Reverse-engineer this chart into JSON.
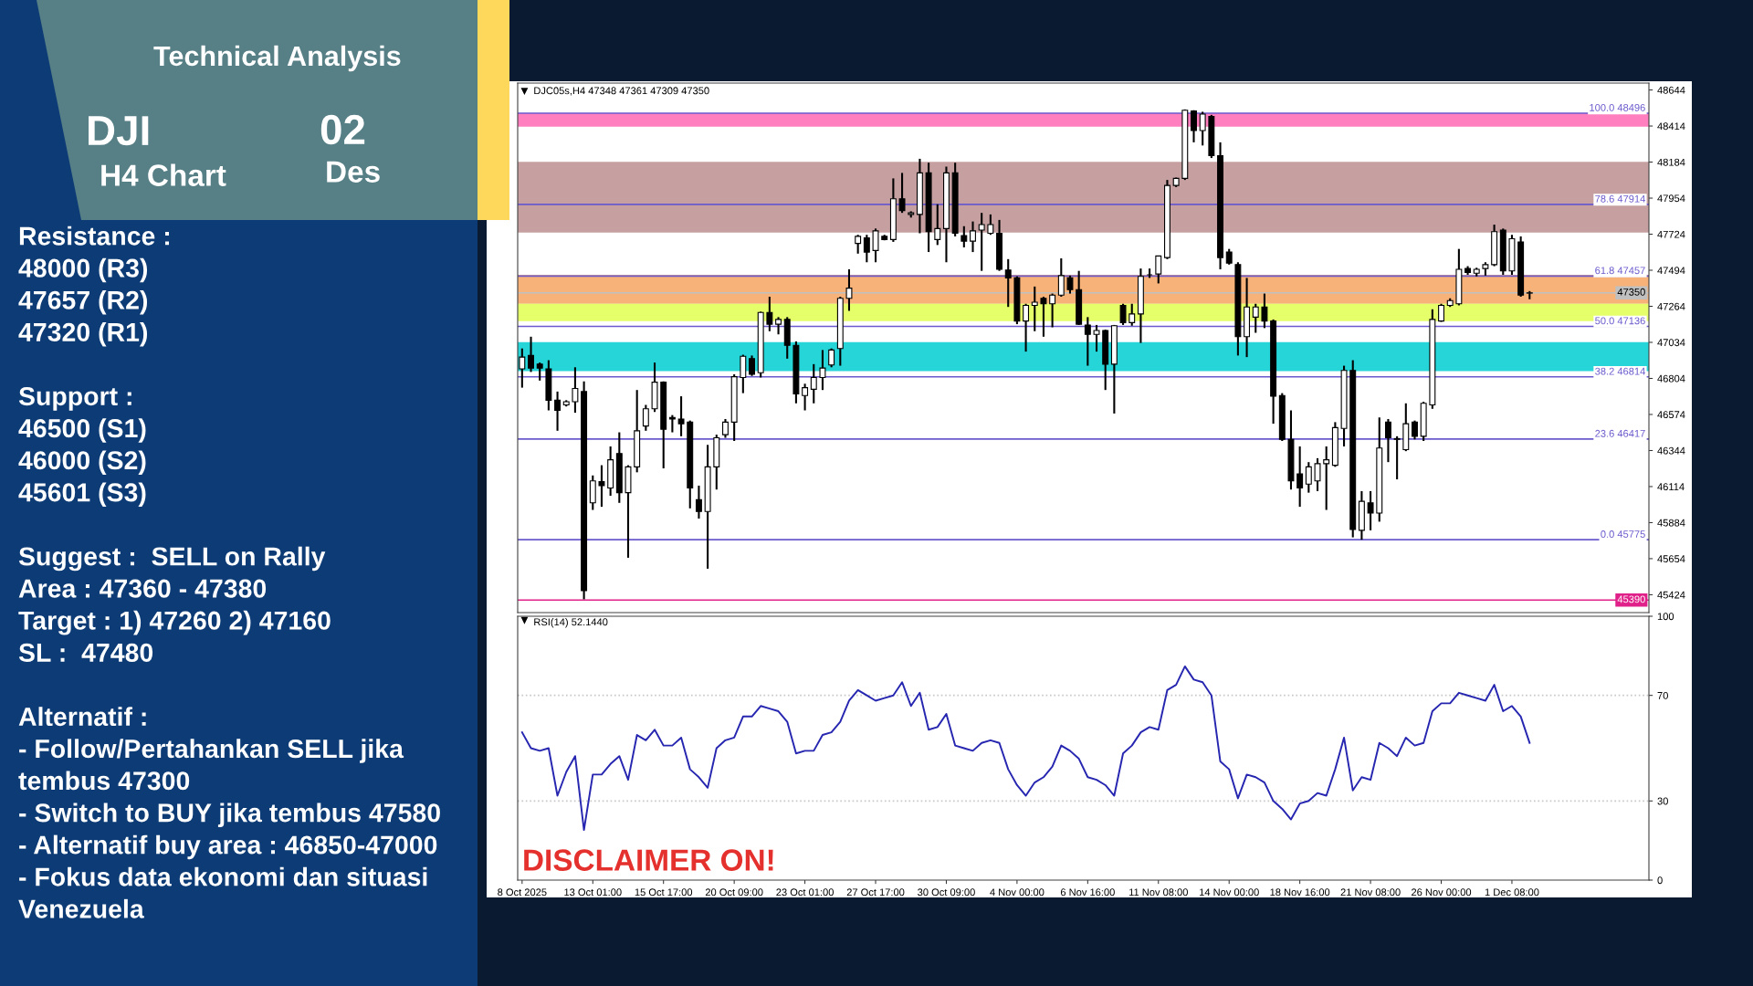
{
  "chart_data": [
    {
      "type": "other",
      "title": "Technical Analysis",
      "annotations": [
        "DJI",
        "H4 Chart",
        "02",
        "Des",
        "Resistance :\n48000 (R3)\n47657 (R2)\n47320 (R1)",
        "Support :\n46500 (S1)\n46000 (S2)\n45601 (S3)",
        "Suggest :  SELL on Rally\nArea : 47360 - 47380\nTarget : 1) 47260 2) 47160\nSL :  47480",
        "Alternatif :\n- Follow/Pertahankan SELL jika tembus 47300\n- Switch to BUY jika tembus 47580\n- Alternatif buy area : 46850-47000\n- Fokus data ekonomi dan situasi Venezuela"
      ]
    },
    {
      "type": "candlestick",
      "title": "DJC05s,H4 47348 47361 47309 47350",
      "color": "#000000",
      "tick_labels": "y",
      "categories": [
        null,
        null,
        null,
        null,
        null,
        null,
        null,
        null,
        null,
        null,
        null,
        null,
        null,
        null,
        null,
        null,
        null,
        null,
        null,
        null,
        null,
        null,
        null,
        null,
        null,
        null,
        null,
        null,
        null,
        null,
        null,
        null,
        null,
        null,
        null,
        null,
        null,
        null,
        null,
        null,
        null,
        null,
        null,
        null,
        null,
        null,
        null,
        null,
        null,
        null,
        null,
        null,
        null,
        null,
        null,
        null,
        null,
        null,
        null,
        null,
        null,
        null,
        null,
        null,
        null,
        null,
        null,
        null,
        null,
        null,
        null,
        null,
        null,
        null,
        null,
        null,
        null,
        null,
        null,
        null,
        null,
        null,
        null,
        null,
        null,
        null,
        null,
        null,
        null,
        null,
        null,
        null,
        null,
        null,
        null,
        null,
        null,
        null,
        null,
        null,
        null,
        null,
        null,
        null,
        null,
        null,
        null,
        null,
        null,
        null,
        null,
        null,
        null,
        null,
        null,
        null,
        null,
        null,
        null,
        null,
        null,
        null,
        null,
        null,
        null,
        null,
        null,
        null
      ],
      "ohlc": [
        [
          46865,
          46995,
          46745,
          46940
        ],
        [
          46950,
          47070,
          46845,
          46870
        ],
        [
          46895,
          46905,
          46790,
          46870
        ],
        [
          46865,
          46920,
          46600,
          46665
        ],
        [
          46665,
          46720,
          46470,
          46600
        ],
        [
          46635,
          46665,
          46625,
          46655
        ],
        [
          46655,
          46875,
          46585,
          46740
        ],
        [
          46720,
          46785,
          45395,
          45450
        ],
        [
          46010,
          46185,
          45965,
          46150
        ],
        [
          46145,
          46250,
          45985,
          46120
        ],
        [
          46105,
          46370,
          46055,
          46285
        ],
        [
          46325,
          46460,
          46010,
          46075
        ],
        [
          46075,
          46250,
          45660,
          46240
        ],
        [
          46240,
          46730,
          46205,
          46470
        ],
        [
          46500,
          46635,
          46470,
          46610
        ],
        [
          46610,
          46905,
          46590,
          46780
        ],
        [
          46780,
          46785,
          46230,
          46480
        ],
        [
          46555,
          46570,
          46460,
          46545
        ],
        [
          46545,
          46690,
          46435,
          46515
        ],
        [
          46525,
          46535,
          45975,
          46105
        ],
        [
          46030,
          46120,
          45910,
          45955
        ],
        [
          45955,
          46380,
          45590,
          46240
        ],
        [
          46240,
          46445,
          46095,
          46425
        ],
        [
          46445,
          46545,
          46425,
          46525
        ],
        [
          46525,
          46830,
          46405,
          46815
        ],
        [
          46810,
          46955,
          46710,
          46945
        ],
        [
          46930,
          46950,
          46820,
          46830
        ],
        [
          46840,
          47230,
          46810,
          47225
        ],
        [
          47225,
          47325,
          47105,
          47150
        ],
        [
          47150,
          47195,
          47085,
          47180
        ],
        [
          47180,
          47195,
          46930,
          47015
        ],
        [
          47015,
          47040,
          46645,
          46705
        ],
        [
          46695,
          46770,
          46600,
          46745
        ],
        [
          46735,
          46895,
          46645,
          46810
        ],
        [
          46810,
          46985,
          46730,
          46870
        ],
        [
          46890,
          46995,
          46875,
          46985
        ],
        [
          46995,
          47325,
          46885,
          47315
        ],
        [
          47315,
          47500,
          47235,
          47380
        ],
        [
          47665,
          47720,
          47600,
          47710
        ],
        [
          47700,
          47720,
          47545,
          47610
        ],
        [
          47620,
          47760,
          47545,
          47745
        ],
        [
          47710,
          47720,
          47685,
          47690
        ],
        [
          47690,
          48080,
          47675,
          47950
        ],
        [
          47950,
          48115,
          47860,
          47875
        ],
        [
          47850,
          47870,
          47830,
          47860
        ],
        [
          47850,
          48205,
          47730,
          48115
        ],
        [
          48115,
          48180,
          47610,
          47740
        ],
        [
          47690,
          47915,
          47655,
          47760
        ],
        [
          47760,
          48155,
          47545,
          48115
        ],
        [
          48115,
          48180,
          47710,
          47730
        ],
        [
          47715,
          47775,
          47640,
          47680
        ],
        [
          47680,
          47805,
          47610,
          47745
        ],
        [
          47750,
          47860,
          47490,
          47785
        ],
        [
          47730,
          47850,
          47720,
          47785
        ],
        [
          47730,
          47815,
          47490,
          47500
        ],
        [
          47495,
          47565,
          47260,
          47445
        ],
        [
          47445,
          47455,
          47150,
          47170
        ],
        [
          47170,
          47280,
          46975,
          47270
        ],
        [
          47270,
          47390,
          47105,
          47290
        ],
        [
          47315,
          47325,
          47070,
          47280
        ],
        [
          47280,
          47345,
          47130,
          47335
        ],
        [
          47335,
          47570,
          47325,
          47460
        ],
        [
          47445,
          47460,
          47345,
          47370
        ],
        [
          47370,
          47490,
          47145,
          47150
        ],
        [
          47145,
          47195,
          46885,
          47085
        ],
        [
          47085,
          47145,
          46975,
          47110
        ],
        [
          47110,
          47115,
          46730,
          46895
        ],
        [
          46895,
          47145,
          46580,
          47140
        ],
        [
          47270,
          47280,
          47145,
          47160
        ],
        [
          47160,
          47280,
          47140,
          47215
        ],
        [
          47215,
          47505,
          47030,
          47455
        ],
        [
          47465,
          47505,
          47445,
          47465
        ],
        [
          47470,
          47585,
          47410,
          47585
        ],
        [
          47575,
          48070,
          47565,
          48035
        ],
        [
          48035,
          48085,
          48025,
          48080
        ],
        [
          48080,
          48520,
          48070,
          48515
        ],
        [
          48510,
          48515,
          48310,
          48385
        ],
        [
          48385,
          48505,
          48290,
          48490
        ],
        [
          48475,
          48485,
          48210,
          48225
        ],
        [
          48225,
          48310,
          47500,
          47575
        ],
        [
          47610,
          47630,
          47530,
          47540
        ],
        [
          47530,
          47545,
          46950,
          47070
        ],
        [
          47070,
          47445,
          46940,
          47260
        ],
        [
          47195,
          47280,
          47095,
          47260
        ],
        [
          47260,
          47345,
          47125,
          47170
        ],
        [
          47170,
          47180,
          46515,
          46690
        ],
        [
          46695,
          46710,
          46405,
          46415
        ],
        [
          46415,
          46600,
          46095,
          46150
        ],
        [
          46195,
          46370,
          45985,
          46105
        ],
        [
          46130,
          46270,
          46075,
          46240
        ],
        [
          46150,
          46295,
          46085,
          46260
        ],
        [
          46260,
          46370,
          45965,
          46285
        ],
        [
          46250,
          46525,
          46240,
          46490
        ],
        [
          46485,
          46885,
          46370,
          46855
        ],
        [
          46855,
          46920,
          45790,
          45840
        ],
        [
          45835,
          46085,
          45775,
          46020
        ],
        [
          46010,
          46085,
          45835,
          45945
        ],
        [
          45945,
          46555,
          45890,
          46360
        ],
        [
          46525,
          46545,
          46270,
          46425
        ],
        [
          46415,
          46435,
          46160,
          46420
        ],
        [
          46350,
          46645,
          46340,
          46515
        ],
        [
          46525,
          46535,
          46415,
          46435
        ],
        [
          46435,
          46655,
          46405,
          46645
        ],
        [
          46635,
          47245,
          46610,
          47180
        ],
        [
          47170,
          47280,
          47165,
          47270
        ],
        [
          47270,
          47315,
          47260,
          47300
        ],
        [
          47280,
          47630,
          47270,
          47500
        ],
        [
          47505,
          47520,
          47465,
          47480
        ],
        [
          47475,
          47510,
          47455,
          47500
        ],
        [
          47505,
          47545,
          47460,
          47530
        ],
        [
          47530,
          47785,
          47520,
          47740
        ],
        [
          47750,
          47760,
          47465,
          47490
        ],
        [
          47490,
          47720,
          47465,
          47695
        ],
        [
          47675,
          47710,
          47325,
          47335
        ],
        [
          47348,
          47361,
          47309,
          47350
        ],
        null,
        null,
        null,
        null,
        null,
        null,
        null,
        null,
        null,
        null,
        null,
        null,
        null
      ],
      "ylim": [
        45310,
        48688
      ],
      "yticks": [
        45424,
        45654,
        45884,
        46114,
        46344,
        46574,
        46804,
        47034,
        47264,
        47494,
        47724,
        47954,
        48184,
        48414,
        48644
      ],
      "bands": [
        {
          "axis": "y",
          "from": 48410,
          "to": 48496,
          "color": "#ff69b4"
        },
        {
          "axis": "y",
          "from": 47735,
          "to": 48185,
          "color": "#bc8f8f"
        },
        {
          "axis": "y",
          "from": 47280,
          "to": 47465,
          "color": "#f4a460"
        },
        {
          "axis": "y",
          "from": 47170,
          "to": 47280,
          "color": "#dfff4f"
        },
        {
          "axis": "y",
          "from": 46850,
          "to": 47035,
          "color": "#00ced1"
        }
      ],
      "ref_lines": [
        {
          "axis": "y",
          "value": 48496,
          "label": "100.0 48496",
          "color": "#6a5acd"
        },
        {
          "axis": "y",
          "value": 47914,
          "label": "78.6 47914",
          "color": "#6a5acd"
        },
        {
          "axis": "y",
          "value": 47457,
          "label": "61.8 47457",
          "color": "#6a5acd"
        },
        {
          "axis": "y",
          "value": 47136,
          "label": "50.0 47136",
          "color": "#6a5acd"
        },
        {
          "axis": "y",
          "value": 46814,
          "label": "38.2 46814",
          "color": "#6a5acd"
        },
        {
          "axis": "y",
          "value": 46417,
          "label": "23.6 46417",
          "color": "#6a5acd"
        },
        {
          "axis": "y",
          "value": 45775,
          "label": "0.0 45775",
          "color": "#6a5acd"
        },
        {
          "axis": "y",
          "value": 47350,
          "label": "47350",
          "color": "#c0c0c0"
        },
        {
          "axis": "y",
          "value": 45390,
          "label": "45390",
          "color": "#e0218a"
        }
      ]
    },
    {
      "type": "line",
      "title": "RSI(14) 52.1440",
      "color": "#2626b0",
      "annotations": [
        "DISCLAIMER ON!"
      ],
      "categories": [
        "8 Oct 2025",
        null,
        null,
        null,
        null,
        null,
        null,
        null,
        "13 Oct 01:00",
        null,
        null,
        null,
        null,
        null,
        null,
        null,
        "15 Oct 17:00",
        null,
        null,
        null,
        null,
        null,
        null,
        null,
        "20 Oct 09:00",
        null,
        null,
        null,
        null,
        null,
        null,
        null,
        "23 Oct 01:00",
        null,
        null,
        null,
        null,
        null,
        null,
        null,
        "27 Oct 17:00",
        null,
        null,
        null,
        null,
        null,
        null,
        null,
        "30 Oct 09:00",
        null,
        null,
        null,
        null,
        null,
        null,
        null,
        "4 Nov 00:00",
        null,
        null,
        null,
        null,
        null,
        null,
        null,
        "6 Nov 16:00",
        null,
        null,
        null,
        null,
        null,
        null,
        null,
        "11 Nov 08:00",
        null,
        null,
        null,
        null,
        null,
        null,
        null,
        "14 Nov 00:00",
        null,
        null,
        null,
        null,
        null,
        null,
        null,
        "18 Nov 16:00",
        null,
        null,
        null,
        null,
        null,
        null,
        null,
        "21 Nov 08:00",
        null,
        null,
        null,
        null,
        null,
        null,
        null,
        "26 Nov 00:00",
        null,
        null,
        null,
        null,
        null,
        null,
        null,
        "1 Dec 08:00",
        null,
        null,
        null,
        null,
        null,
        null,
        null,
        null,
        null,
        null,
        null,
        null,
        null,
        null,
        null
      ],
      "values": [
        56,
        50,
        49,
        50,
        32,
        41,
        47,
        19,
        40,
        40,
        44,
        47,
        38,
        55,
        53,
        57,
        51,
        51,
        54,
        42,
        39,
        35,
        50,
        53,
        54,
        62,
        62,
        66,
        65,
        64,
        60,
        48,
        49,
        49,
        55,
        56,
        60,
        68,
        72,
        70,
        68,
        69,
        70,
        75,
        66,
        71,
        57,
        58,
        63,
        51,
        50,
        49,
        52,
        53,
        52,
        42,
        36,
        32,
        37,
        39,
        43,
        51,
        49,
        46,
        39,
        38,
        36,
        32,
        48,
        51,
        56,
        58,
        57,
        72,
        74,
        81,
        76,
        75,
        70,
        45,
        42,
        31,
        40,
        39,
        37,
        30,
        27,
        23,
        29,
        30,
        33,
        32,
        42,
        54,
        34,
        39,
        38,
        52,
        50,
        47,
        54,
        51,
        52,
        64,
        67,
        67,
        71,
        70,
        69,
        68,
        74,
        64,
        66,
        62,
        52,
        null,
        null,
        null,
        null,
        null,
        null,
        null,
        null,
        null,
        null,
        null,
        null,
        null
      ],
      "ylim": [
        0,
        100
      ],
      "yticks": [
        0,
        30,
        70,
        100
      ],
      "ref_lines": [
        {
          "axis": "y",
          "value": 70,
          "color": "#c8c8c8",
          "line_style": "dotted"
        },
        {
          "axis": "y",
          "value": 30,
          "color": "#c8c8c8",
          "line_style": "dotted"
        }
      ]
    }
  ]
}
